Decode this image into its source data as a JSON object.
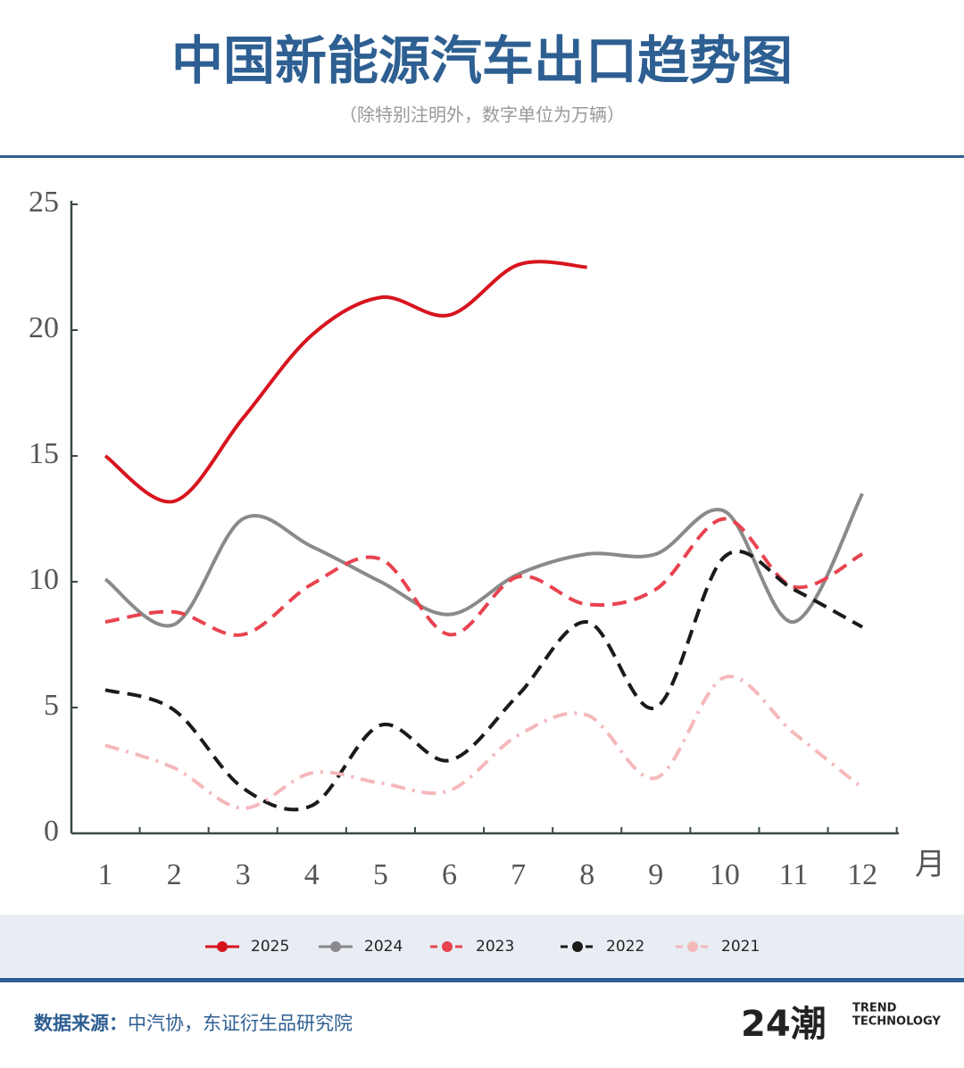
{
  "chart_data": {
    "type": "line",
    "title": "中国新能源汽车出口趋势图",
    "subtitle": "（除特别注明外，数字单位为万辆）",
    "x_label": "月",
    "categories": [
      "1",
      "2",
      "3",
      "4",
      "5",
      "6",
      "7",
      "8",
      "9",
      "10",
      "11",
      "12"
    ],
    "ylim": [
      0,
      25
    ],
    "yticks": [
      0,
      5,
      10,
      15,
      20,
      25
    ],
    "series": [
      {
        "name": "2025",
        "color": "#d7141e",
        "line_style": "solid",
        "values": [
          15.0,
          13.2,
          16.5,
          19.8,
          21.3,
          20.6,
          22.6,
          22.5,
          null,
          null,
          null,
          null
        ]
      },
      {
        "name": "2024",
        "color": "#8a8a8a",
        "line_style": "solid",
        "values": [
          10.1,
          8.3,
          12.5,
          11.4,
          10.0,
          8.7,
          10.3,
          11.1,
          11.1,
          12.8,
          8.4,
          13.5
        ]
      },
      {
        "name": "2023",
        "color": "#e8434f",
        "line_style": "dashed",
        "values": [
          8.4,
          8.8,
          7.9,
          9.9,
          10.9,
          7.9,
          10.2,
          9.1,
          9.7,
          12.5,
          9.8,
          11.1
        ]
      },
      {
        "name": "2022",
        "color": "#1a1a1a",
        "line_style": "dashed",
        "values": [
          5.7,
          4.9,
          1.8,
          1.1,
          4.3,
          2.9,
          5.5,
          8.4,
          5.0,
          11.0,
          9.7,
          8.2
        ]
      },
      {
        "name": "2021",
        "color": "#f5b8bb",
        "line_style": "dashdot",
        "values": [
          3.5,
          2.6,
          1.0,
          2.4,
          2.0,
          1.7,
          3.9,
          4.7,
          2.2,
          6.2,
          4.0,
          1.8
        ]
      }
    ]
  },
  "footer": {
    "source_label": "数据来源：",
    "source": "中汽协，东证衍生品研究院",
    "logo": "24潮",
    "logo_line1": "TREND",
    "logo_line2": "TECHNOLOGY"
  }
}
